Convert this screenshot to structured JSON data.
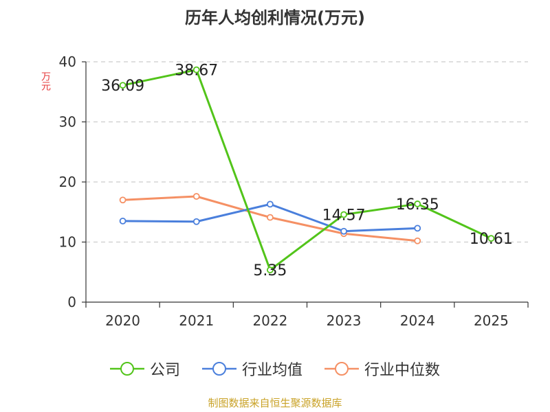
{
  "chart_data": {
    "type": "line",
    "title": "历年人均创利情况(万元)",
    "ylabel": "万元",
    "categories": [
      "2020",
      "2021",
      "2022",
      "2023",
      "2024",
      "2025"
    ],
    "ylim": [
      0,
      40
    ],
    "yticks": [
      0,
      10,
      20,
      30,
      40
    ],
    "grid": true,
    "legend_position": "bottom",
    "series": [
      {
        "name": "公司",
        "color": "#52c41a",
        "values": [
          36.09,
          38.67,
          5.35,
          14.57,
          16.35,
          10.61
        ],
        "labels": [
          "36.09",
          "38.67",
          "5.35",
          "14.57",
          "16.35",
          "10.61"
        ]
      },
      {
        "name": "行业均值",
        "color": "#4a7fdc",
        "values": [
          13.5,
          13.4,
          16.3,
          11.8,
          12.3,
          null
        ]
      },
      {
        "name": "行业中位数",
        "color": "#f59064",
        "values": [
          17.0,
          17.6,
          14.1,
          11.4,
          10.2,
          null
        ]
      }
    ]
  },
  "source": "制图数据来自恒生聚源数据库"
}
